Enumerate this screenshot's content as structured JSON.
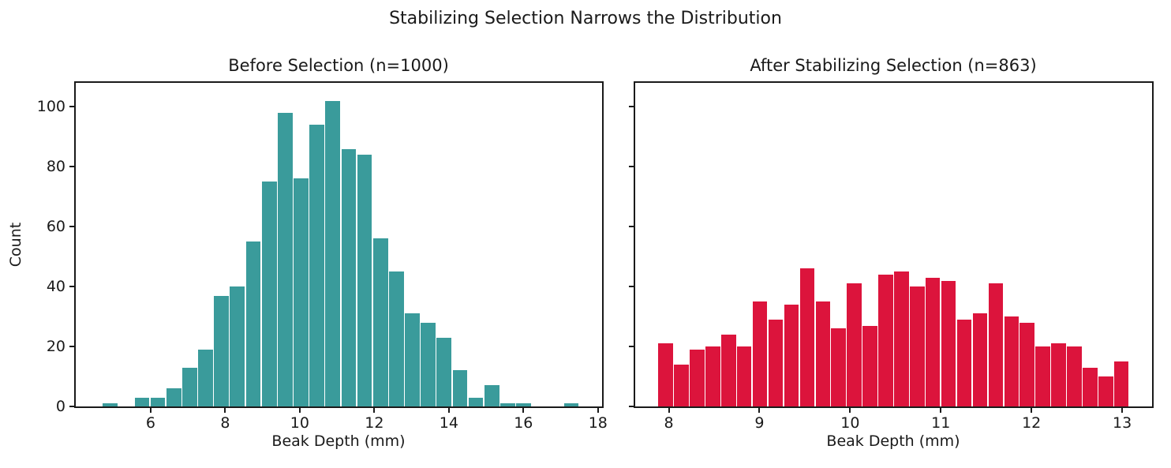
{
  "figure": {
    "suptitle": "Stabilizing Selection Narrows the Distribution",
    "background_color": "#ffffff",
    "text_color": "#1a1a1a"
  },
  "chart_data": [
    {
      "type": "bar",
      "subtype": "histogram",
      "title": "Before Selection (n=1000)",
      "xlabel": "Beak Depth (mm)",
      "ylabel": "Count",
      "n": 1000,
      "bar_color": "#3a9b9b",
      "bar_edge_color": "#ffffff",
      "bin_start": 4.7,
      "bin_width": 0.4266,
      "counts": [
        1,
        0,
        3,
        3,
        6,
        13,
        19,
        37,
        40,
        55,
        75,
        98,
        76,
        94,
        102,
        86,
        84,
        56,
        45,
        31,
        28,
        23,
        12,
        3,
        7,
        1,
        1,
        0,
        0,
        1
      ],
      "xlim": [
        3.99,
        18.11
      ],
      "ylim": [
        0,
        108
      ],
      "xticks": [
        6,
        8,
        10,
        12,
        14,
        16,
        18
      ],
      "yticks": [
        0,
        20,
        40,
        60,
        80,
        100
      ],
      "show_ytick_labels": true,
      "grid": false,
      "legend": null
    },
    {
      "type": "bar",
      "subtype": "histogram",
      "title": "After Stabilizing Selection (n=863)",
      "xlabel": "Beak Depth (mm)",
      "ylabel": "",
      "n": 863,
      "bar_color": "#dc143c",
      "bar_edge_color": "#ffffff",
      "bin_start": 7.88,
      "bin_width": 0.1733,
      "counts": [
        21,
        14,
        19,
        20,
        24,
        20,
        35,
        29,
        34,
        46,
        35,
        26,
        41,
        27,
        44,
        45,
        40,
        43,
        42,
        29,
        31,
        41,
        30,
        28,
        20,
        21,
        20,
        13,
        10,
        15
      ],
      "xlim": [
        7.63,
        13.33
      ],
      "ylim": [
        0,
        108
      ],
      "xticks": [
        8,
        9,
        10,
        11,
        12,
        13
      ],
      "yticks": [
        0,
        20,
        40,
        60,
        80,
        100
      ],
      "show_ytick_labels": false,
      "grid": false,
      "legend": null
    }
  ]
}
